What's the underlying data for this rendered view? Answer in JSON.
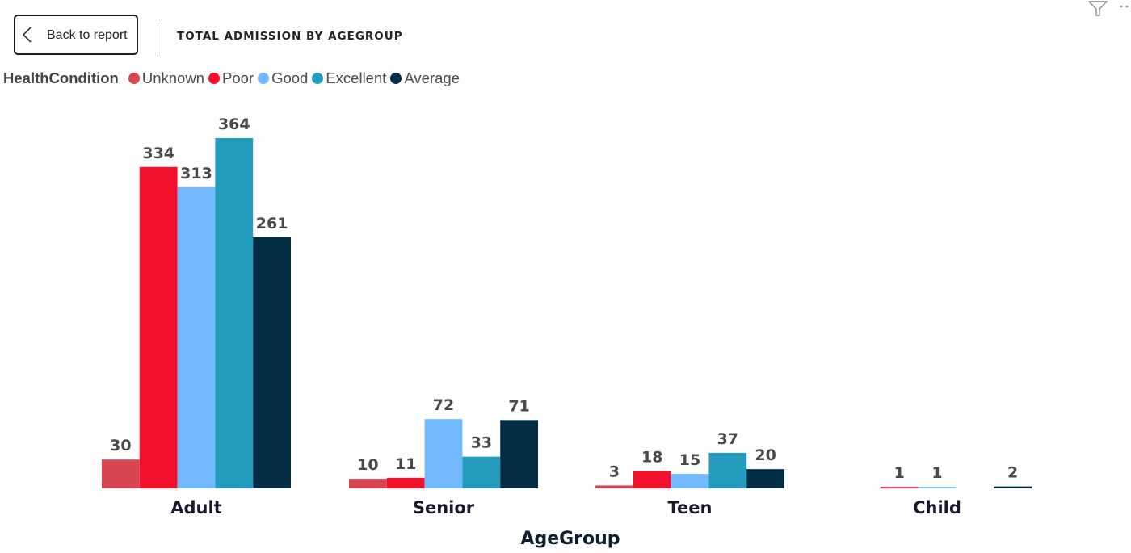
{
  "header": {
    "back_label": "Back to report",
    "title": "TOTAL ADMISSION BY AGEGROUP",
    "icons": {
      "back": "chevron-left-icon",
      "filter": "filter-icon",
      "more": "more-options-icon"
    }
  },
  "legend": {
    "title": "HealthCondition",
    "items": [
      {
        "label": "Unknown",
        "color": "#D64550"
      },
      {
        "label": "Poor",
        "color": "#F2112C"
      },
      {
        "label": "Good",
        "color": "#73B9FF"
      },
      {
        "label": "Excellent",
        "color": "#239CBE"
      },
      {
        "label": "Average",
        "color": "#032D45"
      }
    ]
  },
  "chart_data": {
    "type": "bar",
    "title": "TOTAL ADMISSION BY AGEGROUP",
    "xlabel": "AgeGroup",
    "ylabel": "",
    "categories": [
      "Adult",
      "Senior",
      "Teen",
      "Child"
    ],
    "series": [
      {
        "name": "Unknown",
        "color": "#D64550",
        "values": [
          30,
          10,
          3,
          null
        ]
      },
      {
        "name": "Poor",
        "color": "#F2112C",
        "values": [
          334,
          11,
          18,
          1
        ]
      },
      {
        "name": "Good",
        "color": "#73B9FF",
        "values": [
          313,
          72,
          15,
          1
        ]
      },
      {
        "name": "Excellent",
        "color": "#239CBE",
        "values": [
          364,
          33,
          37,
          null
        ]
      },
      {
        "name": "Average",
        "color": "#032D45",
        "values": [
          261,
          71,
          20,
          2
        ]
      }
    ],
    "ylim": [
      0,
      364
    ],
    "grid": false,
    "data_labels": true,
    "legend_position": "top-left"
  }
}
